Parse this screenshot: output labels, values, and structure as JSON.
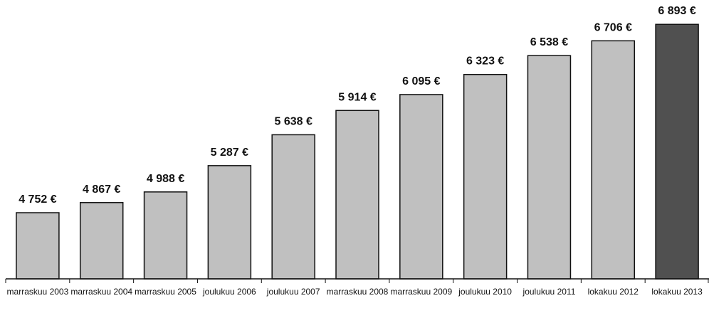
{
  "chart_data": {
    "type": "bar",
    "categories": [
      "marraskuu 2003",
      "marraskuu 2004",
      "marraskuu 2005",
      "joulukuu 2006",
      "joulukuu 2007",
      "marraskuu 2008",
      "marraskuu 2009",
      "joulukuu 2010",
      "joulukuu 2011",
      "lokakuu 2012",
      "lokakuu 2013"
    ],
    "values": [
      4752,
      4867,
      4988,
      5287,
      5638,
      5914,
      6095,
      6323,
      6538,
      6706,
      6893
    ],
    "value_labels": [
      "4 752 €",
      "4 867 €",
      "4 988 €",
      "5 287 €",
      "5 638 €",
      "5 914 €",
      "6 095 €",
      "6 323 €",
      "6 538 €",
      "6 706 €",
      "6 893 €"
    ],
    "colors": [
      "#c0c0c0",
      "#c0c0c0",
      "#c0c0c0",
      "#c0c0c0",
      "#c0c0c0",
      "#c0c0c0",
      "#c0c0c0",
      "#c0c0c0",
      "#c0c0c0",
      "#c0c0c0",
      "#505050"
    ],
    "ylim": [
      4000,
      7000
    ]
  }
}
